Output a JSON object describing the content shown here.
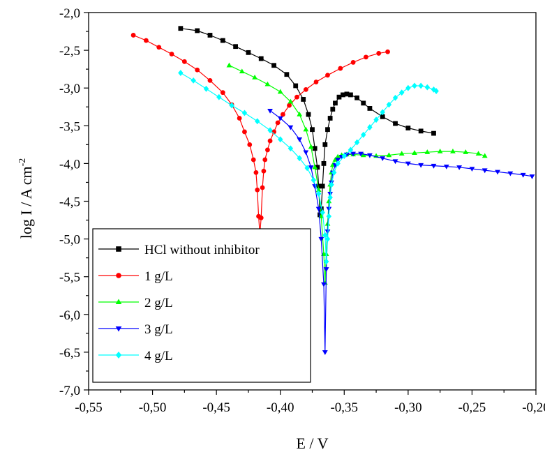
{
  "chart_data": {
    "type": "scatter",
    "title": "",
    "xlabel": "E / V",
    "ylabel_main": "log I / A cm",
    "ylabel_sup": "-2",
    "xlim": [
      -0.55,
      -0.2
    ],
    "ylim": [
      -7.0,
      -2.0
    ],
    "x_ticks": [
      "-0,55",
      "-0,50",
      "-0,45",
      "-0,40",
      "-0,35",
      "-0,30",
      "-0,25",
      "-0,20"
    ],
    "y_ticks": [
      "-2,0",
      "-2,5",
      "-3,0",
      "-3,5",
      "-4,0",
      "-4,5",
      "-5,0",
      "-5,5",
      "-6,0",
      "-6,5",
      "-7,0"
    ],
    "x_tick_values": [
      -0.55,
      -0.5,
      -0.45,
      -0.4,
      -0.35,
      -0.3,
      -0.25,
      -0.2
    ],
    "y_tick_values": [
      -2.0,
      -2.5,
      -3.0,
      -3.5,
      -4.0,
      -4.5,
      -5.0,
      -5.5,
      -6.0,
      -6.5,
      -7.0
    ],
    "grid": false,
    "legend_position": "bottom-left",
    "series": [
      {
        "name": "HCl without inhibitor",
        "color": "#000000",
        "marker": "square",
        "x": [
          -0.478,
          -0.465,
          -0.455,
          -0.445,
          -0.435,
          -0.425,
          -0.415,
          -0.405,
          -0.395,
          -0.388,
          -0.382,
          -0.378,
          -0.375,
          -0.373,
          -0.371,
          -0.37,
          -0.369,
          -0.368,
          -0.367,
          -0.366,
          -0.365,
          -0.363,
          -0.361,
          -0.359,
          -0.357,
          -0.354,
          -0.351,
          -0.348,
          -0.345,
          -0.34,
          -0.335,
          -0.33,
          -0.32,
          -0.31,
          -0.3,
          -0.29,
          -0.28
        ],
        "y": [
          -2.21,
          -2.24,
          -2.3,
          -2.37,
          -2.45,
          -2.53,
          -2.61,
          -2.7,
          -2.82,
          -2.97,
          -3.15,
          -3.35,
          -3.55,
          -3.8,
          -4.05,
          -4.3,
          -4.68,
          -4.6,
          -4.3,
          -4.0,
          -3.75,
          -3.55,
          -3.4,
          -3.28,
          -3.2,
          -3.12,
          -3.09,
          -3.08,
          -3.09,
          -3.13,
          -3.2,
          -3.27,
          -3.38,
          -3.47,
          -3.53,
          -3.57,
          -3.6
        ]
      },
      {
        "name": "1 g/L",
        "color": "#ff0000",
        "marker": "circle",
        "x": [
          -0.515,
          -0.505,
          -0.495,
          -0.485,
          -0.475,
          -0.465,
          -0.455,
          -0.445,
          -0.438,
          -0.432,
          -0.428,
          -0.424,
          -0.421,
          -0.419,
          -0.418,
          -0.417,
          -0.416,
          -0.415,
          -0.414,
          -0.413,
          -0.412,
          -0.41,
          -0.408,
          -0.405,
          -0.402,
          -0.398,
          -0.393,
          -0.387,
          -0.38,
          -0.372,
          -0.363,
          -0.353,
          -0.343,
          -0.333,
          -0.323,
          -0.316
        ],
        "y": [
          -2.3,
          -2.37,
          -2.46,
          -2.55,
          -2.65,
          -2.76,
          -2.9,
          -3.06,
          -3.22,
          -3.4,
          -3.58,
          -3.75,
          -3.95,
          -4.12,
          -4.35,
          -4.7,
          -4.94,
          -4.72,
          -4.32,
          -4.1,
          -3.95,
          -3.82,
          -3.7,
          -3.58,
          -3.46,
          -3.35,
          -3.23,
          -3.12,
          -3.02,
          -2.92,
          -2.83,
          -2.74,
          -2.66,
          -2.59,
          -2.54,
          -2.52
        ]
      },
      {
        "name": "2 g/L",
        "color": "#00ff00",
        "marker": "triangle-up",
        "x": [
          -0.44,
          -0.43,
          -0.42,
          -0.41,
          -0.4,
          -0.392,
          -0.385,
          -0.38,
          -0.376,
          -0.373,
          -0.37,
          -0.368,
          -0.366,
          -0.365,
          -0.364,
          -0.363,
          -0.362,
          -0.361,
          -0.36,
          -0.359,
          -0.357,
          -0.355,
          -0.352,
          -0.348,
          -0.343,
          -0.335,
          -0.325,
          -0.315,
          -0.305,
          -0.295,
          -0.285,
          -0.275,
          -0.265,
          -0.255,
          -0.245,
          -0.24
        ],
        "y": [
          -2.7,
          -2.78,
          -2.86,
          -2.95,
          -3.05,
          -3.18,
          -3.35,
          -3.55,
          -3.78,
          -4.05,
          -4.35,
          -4.7,
          -5.2,
          -5.58,
          -5.2,
          -4.8,
          -4.5,
          -4.28,
          -4.12,
          -4.02,
          -3.95,
          -3.91,
          -3.89,
          -3.88,
          -3.88,
          -3.89,
          -3.9,
          -3.89,
          -3.87,
          -3.86,
          -3.85,
          -3.84,
          -3.84,
          -3.85,
          -3.87,
          -3.9
        ]
      },
      {
        "name": "3 g/L",
        "color": "#0000ff",
        "marker": "triangle-down",
        "x": [
          -0.408,
          -0.4,
          -0.392,
          -0.385,
          -0.38,
          -0.376,
          -0.373,
          -0.37,
          -0.368,
          -0.366,
          -0.365,
          -0.364,
          -0.363,
          -0.362,
          -0.361,
          -0.36,
          -0.359,
          -0.357,
          -0.355,
          -0.352,
          -0.348,
          -0.343,
          -0.337,
          -0.33,
          -0.32,
          -0.31,
          -0.3,
          -0.29,
          -0.28,
          -0.27,
          -0.26,
          -0.25,
          -0.24,
          -0.23,
          -0.22,
          -0.21,
          -0.203
        ],
        "y": [
          -3.3,
          -3.4,
          -3.52,
          -3.68,
          -3.85,
          -4.05,
          -4.3,
          -4.6,
          -5.0,
          -5.6,
          -6.5,
          -5.4,
          -4.9,
          -4.6,
          -4.4,
          -4.25,
          -4.12,
          -4.02,
          -3.95,
          -3.91,
          -3.88,
          -3.87,
          -3.87,
          -3.89,
          -3.93,
          -3.97,
          -4.0,
          -4.02,
          -4.03,
          -4.04,
          -4.05,
          -4.07,
          -4.09,
          -4.11,
          -4.13,
          -4.15,
          -4.17
        ]
      },
      {
        "name": "4 g/L",
        "color": "#00ffff",
        "marker": "diamond",
        "x": [
          -0.478,
          -0.468,
          -0.458,
          -0.448,
          -0.438,
          -0.428,
          -0.418,
          -0.408,
          -0.4,
          -0.392,
          -0.385,
          -0.379,
          -0.374,
          -0.37,
          -0.367,
          -0.365,
          -0.364,
          -0.363,
          -0.362,
          -0.361,
          -0.36,
          -0.358,
          -0.355,
          -0.35,
          -0.345,
          -0.34,
          -0.335,
          -0.33,
          -0.325,
          -0.32,
          -0.315,
          -0.31,
          -0.305,
          -0.3,
          -0.295,
          -0.29,
          -0.285,
          -0.28,
          -0.278
        ],
        "y": [
          -2.8,
          -2.9,
          -3.01,
          -3.12,
          -3.23,
          -3.33,
          -3.44,
          -3.56,
          -3.68,
          -3.8,
          -3.93,
          -4.06,
          -4.22,
          -4.4,
          -4.65,
          -4.95,
          -5.3,
          -5.0,
          -4.7,
          -4.45,
          -4.28,
          -4.12,
          -4.0,
          -3.9,
          -3.82,
          -3.72,
          -3.62,
          -3.52,
          -3.42,
          -3.32,
          -3.22,
          -3.13,
          -3.06,
          -3.0,
          -2.97,
          -2.97,
          -2.99,
          -3.02,
          -3.04
        ]
      }
    ]
  }
}
